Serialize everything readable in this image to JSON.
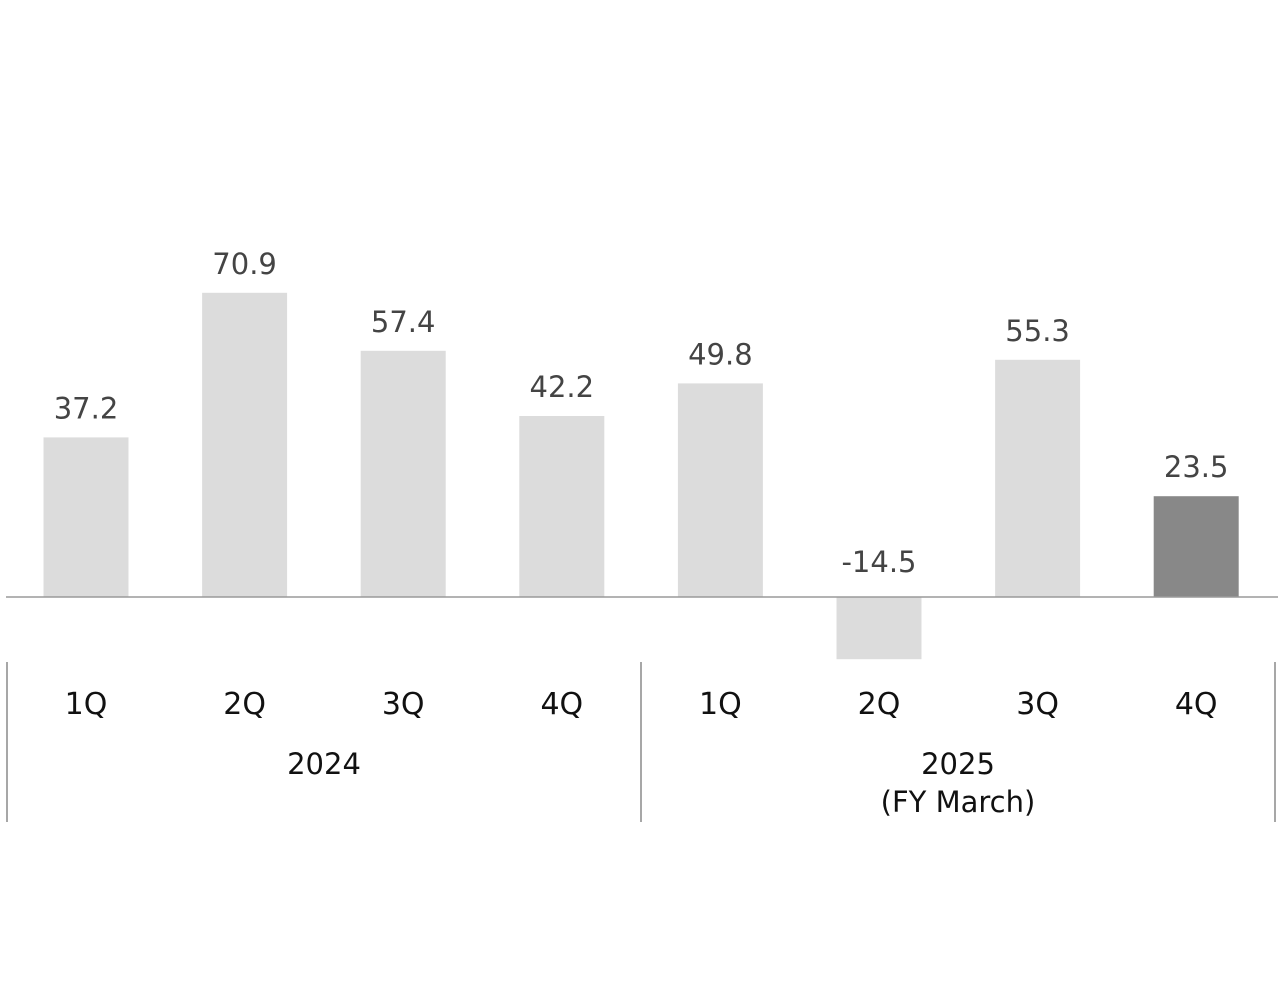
{
  "chart_data": {
    "type": "bar",
    "title": "",
    "xlabel": "",
    "ylabel": "",
    "ylim": [
      -14.5,
      70.9
    ],
    "grid": false,
    "legend": "none",
    "categories": [
      "1Q",
      "2Q",
      "3Q",
      "4Q",
      "1Q",
      "2Q",
      "3Q",
      "4Q"
    ],
    "values": [
      37.2,
      70.9,
      57.4,
      42.2,
      49.8,
      -14.5,
      55.3,
      23.5
    ],
    "value_labels": [
      "37.2",
      "70.9",
      "57.4",
      "42.2",
      "49.8",
      "-14.5",
      "55.3",
      "23.5"
    ],
    "groups": [
      {
        "label": "2024",
        "sublabel": "",
        "count": 4
      },
      {
        "label": "2025",
        "sublabel": "(FY March)",
        "count": 4
      }
    ],
    "highlight_index": 7,
    "colors": {
      "bar": "#dcdcdc",
      "highlight": "#888888",
      "axis": "#9a9a9a",
      "separator": "#8a8a8a"
    }
  }
}
